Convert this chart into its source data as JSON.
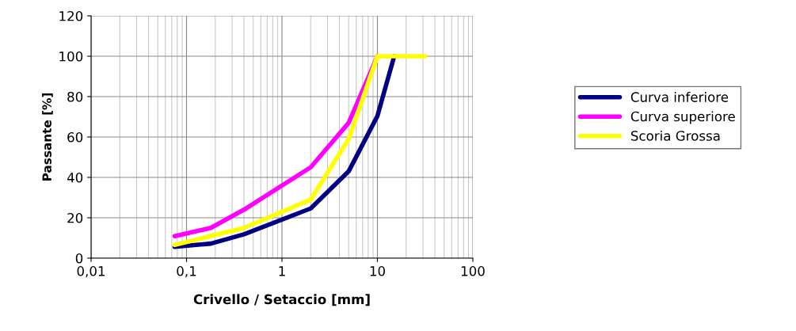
{
  "chart_data": {
    "type": "line",
    "xlabel": "Crivello / Setaccio [mm]",
    "ylabel": "Passante [%]",
    "x": [
      0.075,
      0.18,
      0.4,
      2,
      5,
      10,
      15,
      31.5
    ],
    "series": [
      {
        "name": "Curva inferiore",
        "color": "#000080",
        "values": [
          5.6,
          7.2,
          11.8,
          24.6,
          43,
          70.4,
          100,
          null
        ]
      },
      {
        "name": "Curva superiore",
        "color": "#ff00ff",
        "values": [
          10.9,
          15,
          24,
          45,
          67,
          100,
          null,
          null
        ]
      },
      {
        "name": "Scoria Grossa",
        "color": "#ffff00",
        "values": [
          6.5,
          11,
          15,
          29,
          59,
          100,
          100,
          100
        ]
      }
    ],
    "log": "x",
    "xlim": [
      0.01,
      100
    ],
    "xticks": [
      {
        "value": 0.01,
        "label": "0,01"
      },
      {
        "value": 0.1,
        "label": "0,1"
      },
      {
        "value": 1,
        "label": "1"
      },
      {
        "value": 10,
        "label": "10"
      },
      {
        "value": 100,
        "label": "100"
      }
    ],
    "ylim": [
      0,
      120
    ],
    "yticks": [
      0,
      20,
      40,
      60,
      80,
      100,
      120
    ],
    "grid": true,
    "legend": "right",
    "marker": "none",
    "line_style": "solid"
  }
}
